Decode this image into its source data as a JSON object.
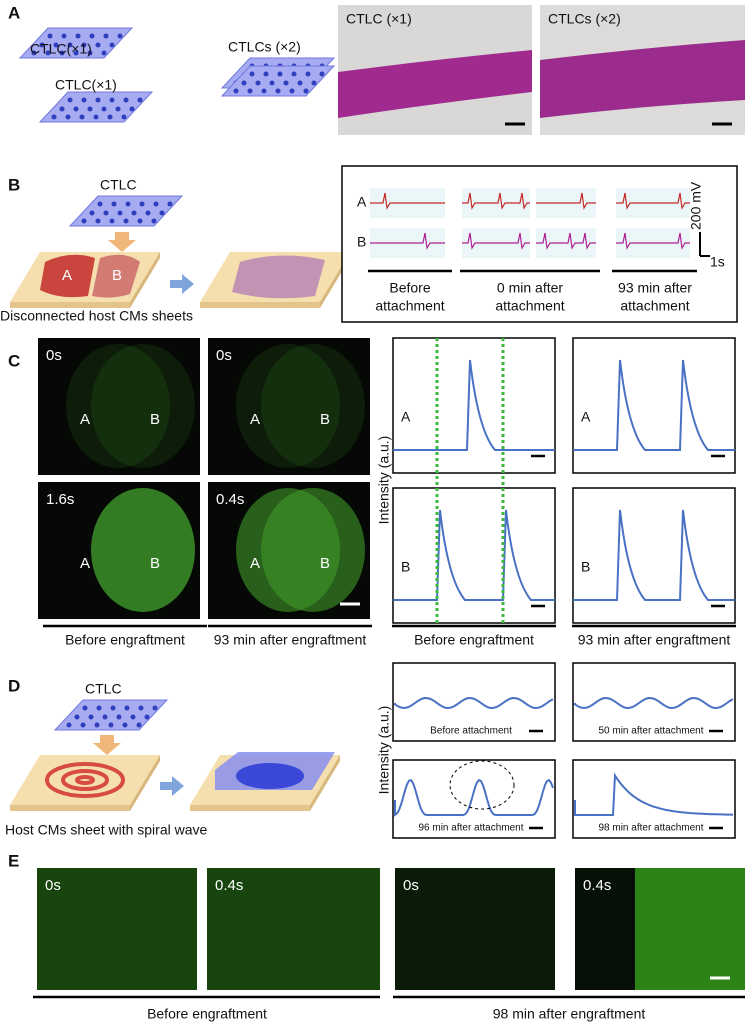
{
  "panel_a": {
    "label": "A",
    "sheet_labels": [
      "CTLC(×1)",
      "CTLC(×1)"
    ],
    "stack_label": "CTLCs (×2)",
    "photo_labels": [
      "CTLC (×1)",
      "CTLCs (×2)"
    ]
  },
  "panel_b": {
    "label": "B",
    "sheet_label": "CTLC",
    "host_labels": [
      "A",
      "B"
    ],
    "caption": "Disconnected host CMs sheets",
    "trace_rows": [
      "A",
      "B"
    ],
    "scale_y": "200 mV",
    "scale_x": "1s",
    "conditions": [
      [
        "Before",
        "attachment"
      ],
      [
        "0 min after",
        "attachment"
      ],
      [
        "93 min after",
        "attachment"
      ]
    ]
  },
  "panel_c": {
    "label": "C",
    "images": [
      {
        "time": "0s",
        "regions": [
          "A",
          "B"
        ]
      },
      {
        "time": "0s",
        "regions": [
          "A",
          "B"
        ]
      },
      {
        "time": "1.6s",
        "regions": [
          "A",
          "B"
        ]
      },
      {
        "time": "0.4s",
        "regions": [
          "A",
          "B"
        ]
      }
    ],
    "y_axis": "Intensity (a.u.)",
    "plot_labels": [
      "A",
      "A",
      "B",
      "B"
    ],
    "captions": [
      "Before engraftment",
      "93 min after engraftment",
      "Before engraftment",
      "93 min after engraftment"
    ]
  },
  "panel_d": {
    "label": "D",
    "sheet_label": "CTLC",
    "caption": "Host CMs sheet with spiral wave",
    "y_axis": "Intensity (a.u.)",
    "plot_captions": [
      "Before attachment",
      "50 min after attachment",
      "96 min after attachment",
      "98 min after attachment"
    ]
  },
  "panel_e": {
    "label": "E",
    "times": [
      "0s",
      "0.4s",
      "0s",
      "0.4s"
    ],
    "captions": [
      "Before engraftment",
      "98 min after engraftment"
    ]
  }
}
